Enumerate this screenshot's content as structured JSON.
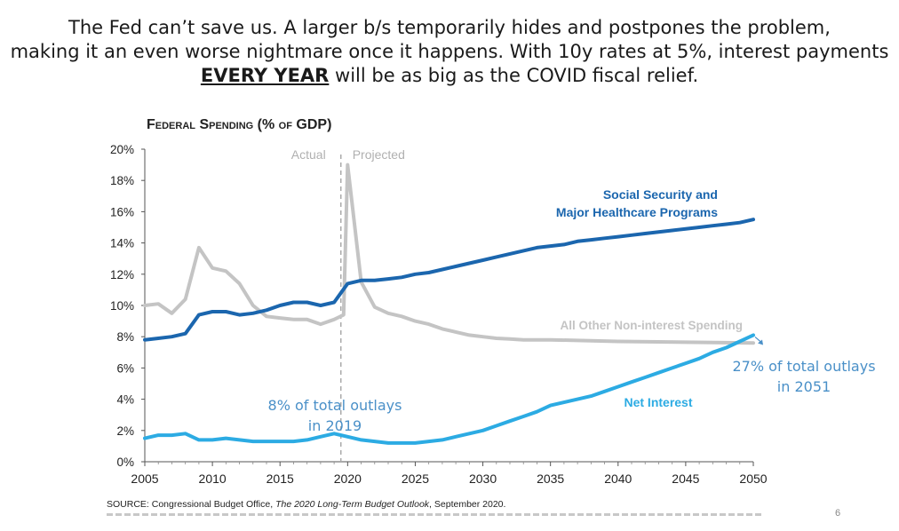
{
  "headline": {
    "line1": "The Fed can’t save us. A larger b/s temporarily hides and postpones the problem,",
    "line2": "making it an even worse nightmare once it happens. With 10y rates at 5%, interest payments",
    "line3_emph": "EVERY YEAR",
    "line3_rest": " will be as big as the COVID fiscal relief."
  },
  "chart_data": {
    "type": "line",
    "title": "Federal Spending (% of GDP)",
    "ylim": [
      0,
      20
    ],
    "xlim": [
      2005,
      2050
    ],
    "y_ticks": [
      "0%",
      "2%",
      "4%",
      "6%",
      "8%",
      "10%",
      "12%",
      "14%",
      "16%",
      "18%",
      "20%"
    ],
    "x_ticks": [
      "2005",
      "2010",
      "2015",
      "2020",
      "2025",
      "2030",
      "2035",
      "2040",
      "2045",
      "2050"
    ],
    "divider_x": 2019.5,
    "divider_labels": {
      "left": "Actual",
      "right": "Projected"
    },
    "grid": false,
    "series": [
      {
        "name": "Social Security and Major Healthcare Programs",
        "label_lines": [
          "Social Security and",
          "Major Healthcare Programs"
        ],
        "color": "#1b66ae",
        "x": [
          2005,
          2006,
          2007,
          2008,
          2009,
          2010,
          2011,
          2012,
          2013,
          2014,
          2015,
          2016,
          2017,
          2018,
          2019,
          2020,
          2021,
          2022,
          2023,
          2024,
          2025,
          2026,
          2027,
          2028,
          2029,
          2030,
          2031,
          2032,
          2033,
          2034,
          2035,
          2036,
          2037,
          2038,
          2039,
          2040,
          2041,
          2042,
          2043,
          2044,
          2045,
          2046,
          2047,
          2048,
          2049,
          2050
        ],
        "values": [
          7.8,
          7.9,
          8.0,
          8.2,
          9.4,
          9.6,
          9.6,
          9.4,
          9.5,
          9.7,
          10.0,
          10.2,
          10.2,
          10.0,
          10.2,
          11.4,
          11.6,
          11.6,
          11.7,
          11.8,
          12.0,
          12.1,
          12.3,
          12.5,
          12.7,
          12.9,
          13.1,
          13.3,
          13.5,
          13.7,
          13.8,
          13.9,
          14.1,
          14.2,
          14.3,
          14.4,
          14.5,
          14.6,
          14.7,
          14.8,
          14.9,
          15.0,
          15.1,
          15.2,
          15.3,
          15.5
        ]
      },
      {
        "name": "All Other Non-interest Spending",
        "label_lines": [
          "All Other Non-interest Spending"
        ],
        "color": "#c4c4c4",
        "x": [
          2005,
          2006,
          2007,
          2008,
          2009,
          2010,
          2011,
          2012,
          2013,
          2014,
          2015,
          2016,
          2017,
          2018,
          2019,
          2019.7,
          2020,
          2021,
          2022,
          2023,
          2024,
          2025,
          2026,
          2027,
          2028,
          2029,
          2030,
          2031,
          2032,
          2033,
          2035,
          2040,
          2045,
          2050
        ],
        "values": [
          10.0,
          10.1,
          9.5,
          10.4,
          13.7,
          12.4,
          12.2,
          11.4,
          10.0,
          9.3,
          9.2,
          9.1,
          9.1,
          8.8,
          9.1,
          9.4,
          19.0,
          11.5,
          9.9,
          9.5,
          9.3,
          9.0,
          8.8,
          8.5,
          8.3,
          8.1,
          8.0,
          7.9,
          7.85,
          7.8,
          7.8,
          7.7,
          7.65,
          7.6
        ]
      },
      {
        "name": "Net Interest",
        "label_lines": [
          "Net Interest"
        ],
        "color": "#2cabe3",
        "x": [
          2005,
          2006,
          2007,
          2008,
          2009,
          2010,
          2011,
          2012,
          2013,
          2014,
          2015,
          2016,
          2017,
          2018,
          2019,
          2020,
          2021,
          2022,
          2023,
          2024,
          2025,
          2026,
          2027,
          2028,
          2029,
          2030,
          2031,
          2032,
          2033,
          2034,
          2035,
          2036,
          2037,
          2038,
          2039,
          2040,
          2041,
          2042,
          2043,
          2044,
          2045,
          2046,
          2047,
          2048,
          2049,
          2050
        ],
        "values": [
          1.5,
          1.7,
          1.7,
          1.8,
          1.4,
          1.4,
          1.5,
          1.4,
          1.3,
          1.3,
          1.3,
          1.3,
          1.4,
          1.6,
          1.8,
          1.6,
          1.4,
          1.3,
          1.2,
          1.2,
          1.2,
          1.3,
          1.4,
          1.6,
          1.8,
          2.0,
          2.3,
          2.6,
          2.9,
          3.2,
          3.6,
          3.8,
          4.0,
          4.2,
          4.5,
          4.8,
          5.1,
          5.4,
          5.7,
          6.0,
          6.3,
          6.6,
          7.0,
          7.3,
          7.7,
          8.1
        ]
      }
    ],
    "annotations": [
      {
        "lines": [
          "8% of total outlays",
          "in 2019"
        ],
        "color": "#4a90c8"
      },
      {
        "lines": [
          "27% of total outlays",
          "in 2051"
        ],
        "color": "#4a90c8"
      }
    ]
  },
  "source": {
    "prefix": "SOURCE: Congressional Budget Office, ",
    "title": "The 2020 Long-Term Budget Outlook",
    "suffix": ", September 2020."
  },
  "slide_number": "6"
}
